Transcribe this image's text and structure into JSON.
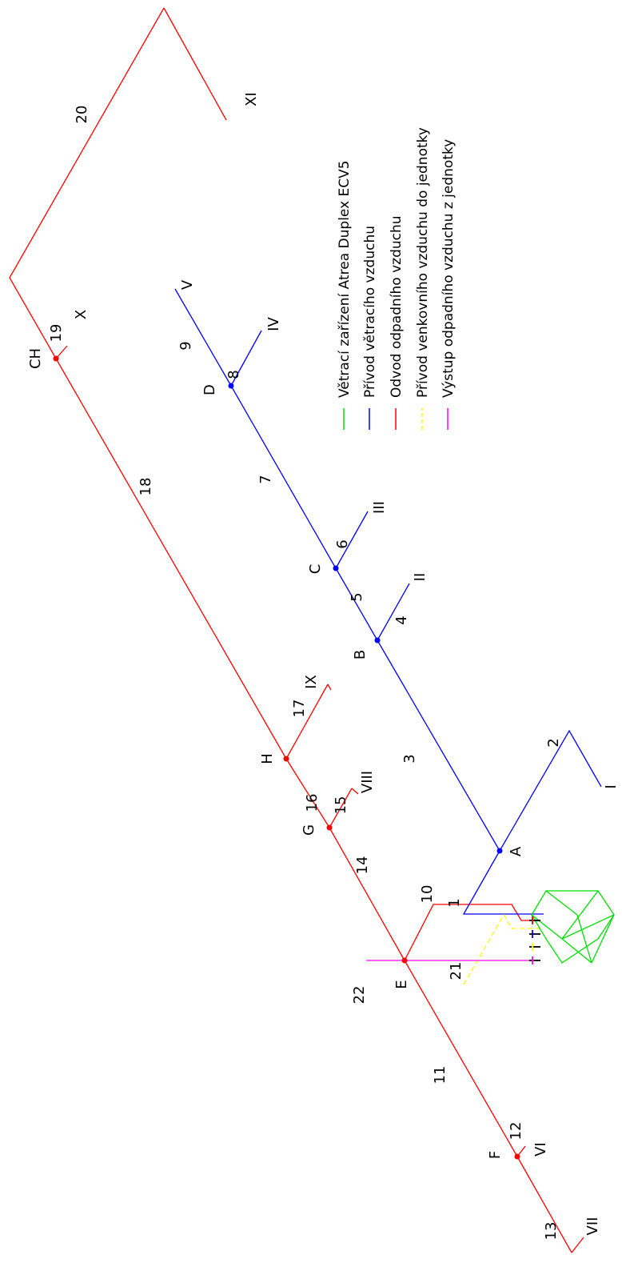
{
  "colors": {
    "unit": "#00dd00",
    "supply": "#0000ff",
    "extract": "#ff0000",
    "outdoor": "#ffff00",
    "exhaust": "#ff00ff",
    "text": "#000000"
  },
  "legend": {
    "unit": "Větrací zařízení Atrea Duplex ECV5",
    "supply": "Přívod větracího vzduchu",
    "extract": "Odvod odpadního vzduchu",
    "outdoor": "Přívod venkovního vzduchu do jednotky",
    "exhaust": "Výstup odpadního vzduchu z jednotky"
  },
  "nodes": {
    "A": "A",
    "B": "B",
    "C": "C",
    "D": "D",
    "E": "E",
    "F": "F",
    "G": "G",
    "H": "H",
    "CH": "CH"
  },
  "outlets": {
    "I": "I",
    "II": "II",
    "III": "III",
    "IV": "IV",
    "V": "V",
    "VI": "VI",
    "VII": "VII",
    "VIII": "VIII",
    "IX": "IX",
    "X": "X",
    "XI": "XI"
  },
  "segments": {
    "s1": "1",
    "s2": "2",
    "s3": "3",
    "s4": "4",
    "s5": "5",
    "s6": "6",
    "s7": "7",
    "s8": "8",
    "s9": "9",
    "s10": "10",
    "s11": "11",
    "s12": "12",
    "s13": "13",
    "s14": "14",
    "s15": "15",
    "s16": "16",
    "s17": "17",
    "s18": "18",
    "s19": "19",
    "s20": "20",
    "s21": "21",
    "s22": "22"
  }
}
